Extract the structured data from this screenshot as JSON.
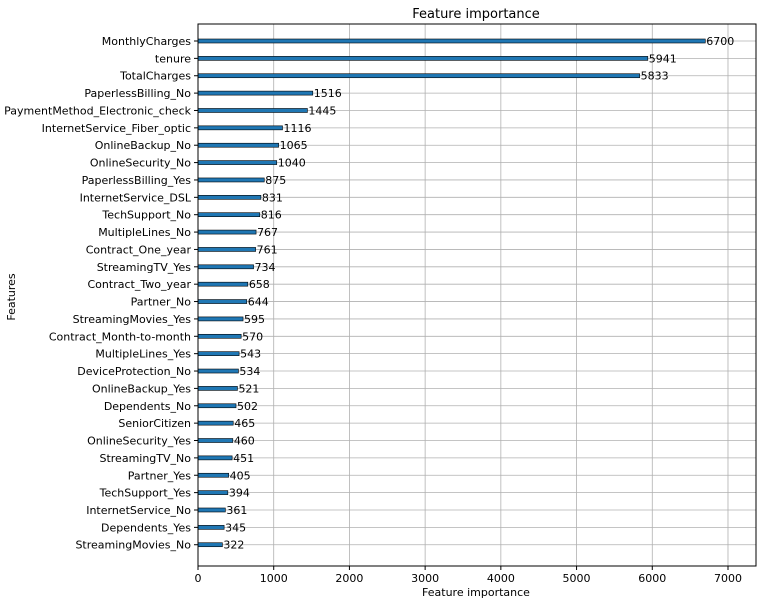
{
  "chart_data": {
    "type": "bar",
    "orientation": "horizontal",
    "title": "Feature importance",
    "xlabel": "Feature importance",
    "ylabel": "Features",
    "xlim": [
      0,
      7370
    ],
    "xticks": [
      0,
      1000,
      2000,
      3000,
      4000,
      5000,
      6000,
      7000
    ],
    "grid": true,
    "bar_color": "#1f77b4",
    "categories": [
      "MonthlyCharges",
      "tenure",
      "TotalCharges",
      "PaperlessBilling_No",
      "PaymentMethod_Electronic_check",
      "InternetService_Fiber_optic",
      "OnlineBackup_No",
      "OnlineSecurity_No",
      "PaperlessBilling_Yes",
      "InternetService_DSL",
      "TechSupport_No",
      "MultipleLines_No",
      "Contract_One_year",
      "StreamingTV_Yes",
      "Contract_Two_year",
      "Partner_No",
      "StreamingMovies_Yes",
      "Contract_Month-to-month",
      "MultipleLines_Yes",
      "DeviceProtection_No",
      "OnlineBackup_Yes",
      "Dependents_No",
      "SeniorCitizen",
      "OnlineSecurity_Yes",
      "StreamingTV_No",
      "Partner_Yes",
      "TechSupport_Yes",
      "InternetService_No",
      "Dependents_Yes",
      "StreamingMovies_No"
    ],
    "values": [
      6700,
      5941,
      5833,
      1516,
      1445,
      1116,
      1065,
      1040,
      875,
      831,
      816,
      767,
      761,
      734,
      658,
      644,
      595,
      570,
      543,
      534,
      521,
      502,
      465,
      460,
      451,
      405,
      394,
      361,
      345,
      322
    ]
  }
}
